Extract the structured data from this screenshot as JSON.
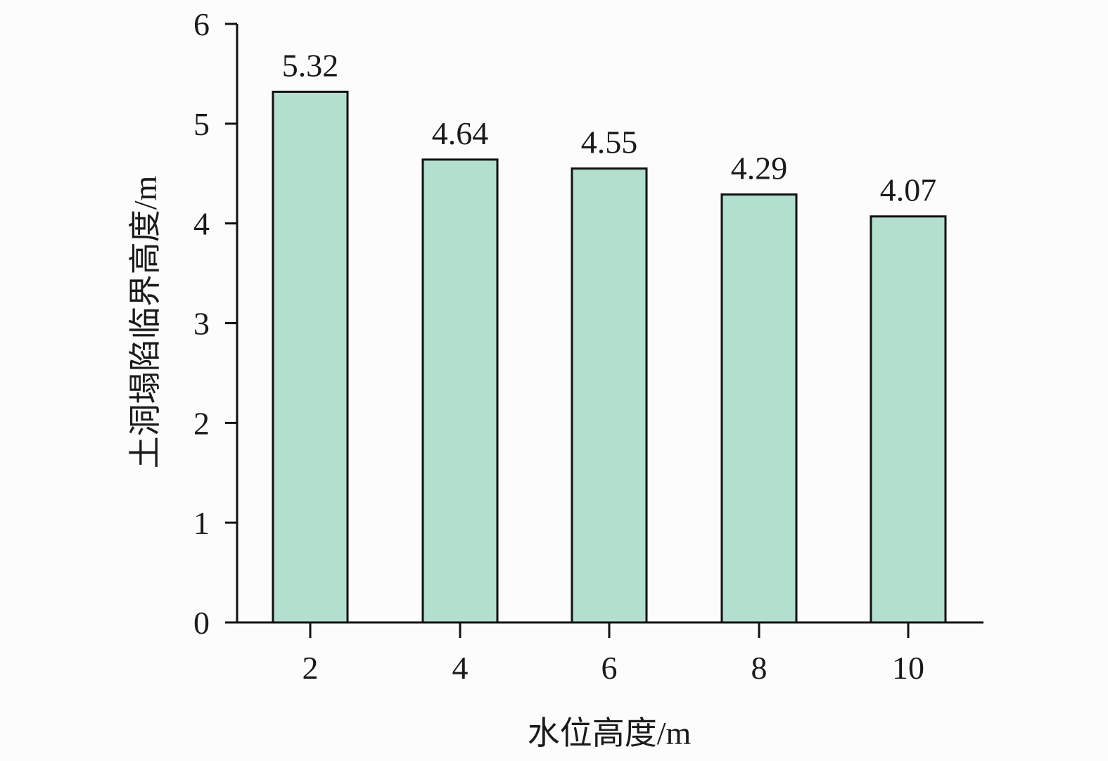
{
  "chart_data": {
    "type": "bar",
    "categories": [
      "2",
      "4",
      "6",
      "8",
      "10"
    ],
    "values": [
      5.32,
      4.64,
      4.55,
      4.29,
      4.07
    ],
    "data_labels": [
      "5.32",
      "4.64",
      "4.55",
      "4.29",
      "4.07"
    ],
    "title": "",
    "xlabel": "水位高度/m",
    "ylabel": "土洞塌陷临界高度/m",
    "ylim": [
      0,
      6
    ],
    "yticks": [
      "0",
      "1",
      "2",
      "3",
      "4",
      "5",
      "6"
    ],
    "grid": false,
    "colors": {
      "bar_fill": "#b3dfcf",
      "bar_edge": "#111111",
      "axis": "#111111"
    }
  }
}
